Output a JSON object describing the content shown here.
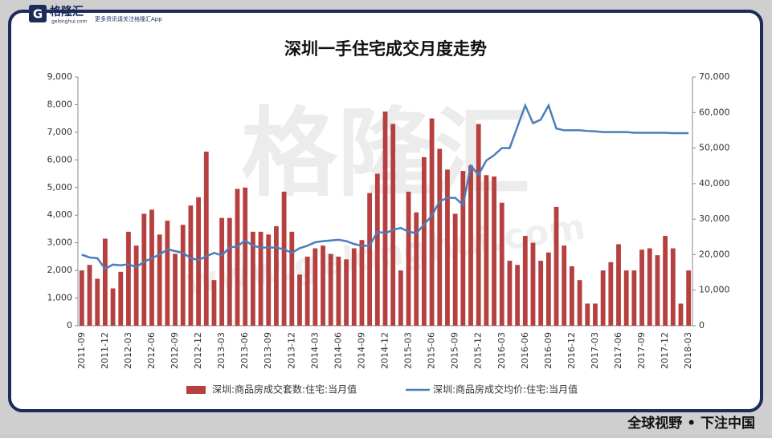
{
  "header": {
    "logo": "格隆汇",
    "site": "gelonghui.com",
    "tagline": "更多资讯请关注格隆汇App"
  },
  "watermark": {
    "text": "格隆汇",
    "url": "www.gelonghui.com"
  },
  "footer": {
    "slogan": "全球视野 • 下注中国"
  },
  "chart_data": {
    "type": "bar",
    "title": "深圳一手住宅成交月度走势",
    "categories": [
      "2011-09",
      null,
      null,
      "2011-12",
      null,
      null,
      "2012-03",
      null,
      null,
      "2012-06",
      null,
      null,
      "2012-09",
      null,
      null,
      "2012-12",
      null,
      null,
      "2013-03",
      null,
      null,
      "2013-06",
      null,
      null,
      "2013-09",
      null,
      null,
      "2013-12",
      null,
      null,
      "2014-03",
      null,
      null,
      "2014-06",
      null,
      null,
      "2014-09",
      null,
      null,
      "2014-12",
      null,
      null,
      "2015-03",
      null,
      null,
      "2015-06",
      null,
      null,
      "2015-09",
      null,
      null,
      "2015-12",
      null,
      null,
      "2016-03",
      null,
      null,
      "2016-06",
      null,
      null,
      "2016-09",
      null,
      null,
      "2016-12",
      null,
      null,
      "2017-03",
      null,
      null,
      "2017-06",
      null,
      null,
      "2017-09",
      null,
      null,
      "2017-12",
      null,
      null,
      "2018-03"
    ],
    "series": [
      {
        "name": "深圳:商品房成交套数:住宅:当月值",
        "type": "bar",
        "color": "#b5403f",
        "values": [
          2000,
          2200,
          1700,
          3150,
          1350,
          1950,
          3400,
          2900,
          4050,
          4200,
          3300,
          3800,
          2600,
          3650,
          4350,
          4650,
          6300,
          1650,
          3900,
          3900,
          4950,
          5000,
          3400,
          3400,
          3300,
          3600,
          4850,
          3400,
          1850,
          2500,
          2800,
          2900,
          2600,
          2500,
          2400,
          2800,
          3100,
          4800,
          5500,
          7750,
          7300,
          2000,
          4850,
          4100,
          6100,
          7500,
          6400,
          5650,
          4050,
          5600,
          5800,
          7300,
          5450,
          5400,
          4450,
          2350,
          2200,
          3250,
          3000,
          2350,
          2650,
          4300,
          2900,
          2150,
          1650,
          800,
          800,
          2000,
          2300,
          2950,
          2000,
          2000,
          2750,
          2800,
          2550,
          3250,
          2800,
          800,
          2000
        ]
      },
      {
        "name": "深圳:商品房成交均价:住宅:当月值",
        "type": "line",
        "axis": "y2",
        "color": "#4a7ebb",
        "values": [
          20000,
          19200,
          19000,
          16000,
          17200,
          17000,
          17300,
          16500,
          18000,
          19000,
          20000,
          21500,
          21000,
          20500,
          19000,
          18500,
          19500,
          20500,
          19800,
          22000,
          22300,
          24000,
          22500,
          22000,
          22000,
          22000,
          21500,
          20500,
          21800,
          22500,
          23500,
          23800,
          24000,
          24200,
          23800,
          23000,
          22500,
          22500,
          26500,
          26000,
          27000,
          27500,
          26500,
          26000,
          28500,
          31000,
          35000,
          36000,
          36000,
          34000,
          45000,
          42500,
          46500,
          48000,
          50000,
          50000,
          56000,
          62000,
          57000,
          58000,
          62000,
          55500,
          55000,
          55000,
          55000,
          54800,
          54700,
          54500,
          54500,
          54500,
          54500,
          54300,
          54300,
          54300,
          54300,
          54300,
          54200,
          54200,
          54200
        ]
      }
    ],
    "ylim": [
      0,
      9000
    ],
    "yticks": [
      0,
      {
        "value": 1000,
        "label": "1,000"
      },
      {
        "value": 2000,
        "label": "2,000"
      },
      {
        "value": 3000,
        "label": "3,000"
      },
      {
        "value": 4000,
        "label": "4,000"
      },
      {
        "value": 5000,
        "label": "5,000"
      },
      {
        "value": 6000,
        "label": "6,000"
      },
      {
        "value": 7000,
        "label": "7,000"
      },
      {
        "value": 8000,
        "label": "8,000"
      },
      {
        "value": 9000,
        "label": "9,000"
      }
    ],
    "y2lim": [
      0,
      70000
    ],
    "y2ticks": [
      0,
      {
        "value": 10000,
        "label": "10,000"
      },
      {
        "value": 20000,
        "label": "20,000"
      },
      {
        "value": 30000,
        "label": "30,000"
      },
      {
        "value": 40000,
        "label": "40,000"
      },
      {
        "value": 50000,
        "label": "50,000"
      },
      {
        "value": 60000,
        "label": "60,000"
      },
      {
        "value": 70000,
        "label": "70,000"
      }
    ],
    "legend": "bottom"
  }
}
